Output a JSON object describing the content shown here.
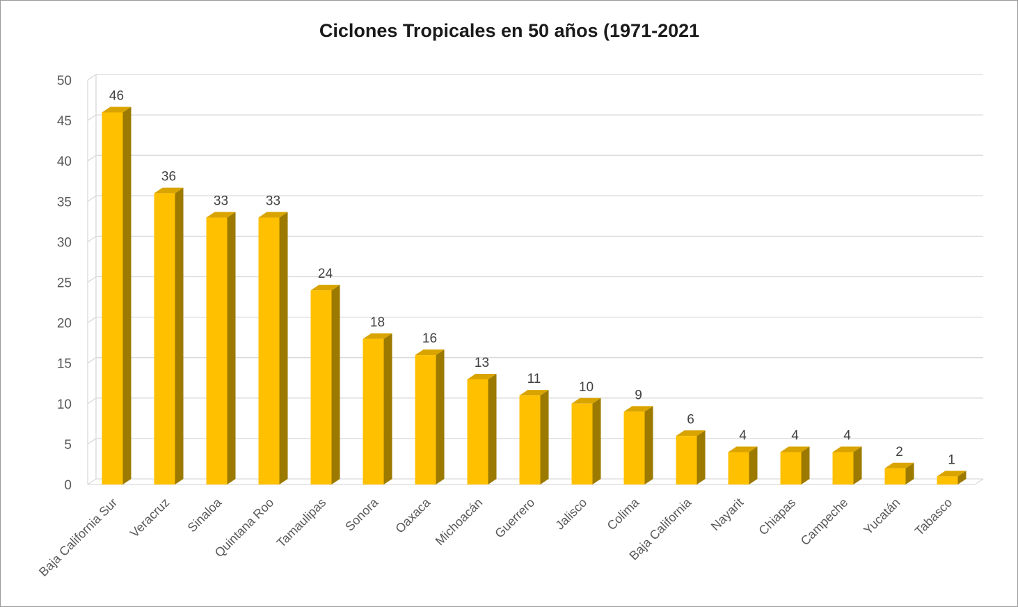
{
  "chart_data": {
    "type": "bar",
    "title": "Ciclones Tropicales en 50 años (1971-2021",
    "categories": [
      "Baja California Sur",
      "Veracruz",
      "Sinaloa",
      "Quintana Roo",
      "Tamaulipas",
      "Sonora",
      "Oaxaca",
      "Michoacán",
      "Guerrero",
      "Jalisco",
      "Colima",
      "Baja California",
      "Nayarit",
      "Chiapas",
      "Campeche",
      "Yucatán",
      "Tabasco"
    ],
    "values": [
      46,
      36,
      33,
      33,
      24,
      18,
      16,
      13,
      11,
      10,
      9,
      6,
      4,
      4,
      4,
      2,
      1
    ],
    "ylim": [
      0,
      50
    ],
    "yticks": [
      0,
      5,
      10,
      15,
      20,
      25,
      30,
      35,
      40,
      45,
      50
    ],
    "grid": true,
    "legend": "none",
    "style": "3d-column",
    "colors": {
      "bar_front": "#ffc000",
      "bar_side": "#9c7a00",
      "bar_top": "#d9a400"
    }
  }
}
